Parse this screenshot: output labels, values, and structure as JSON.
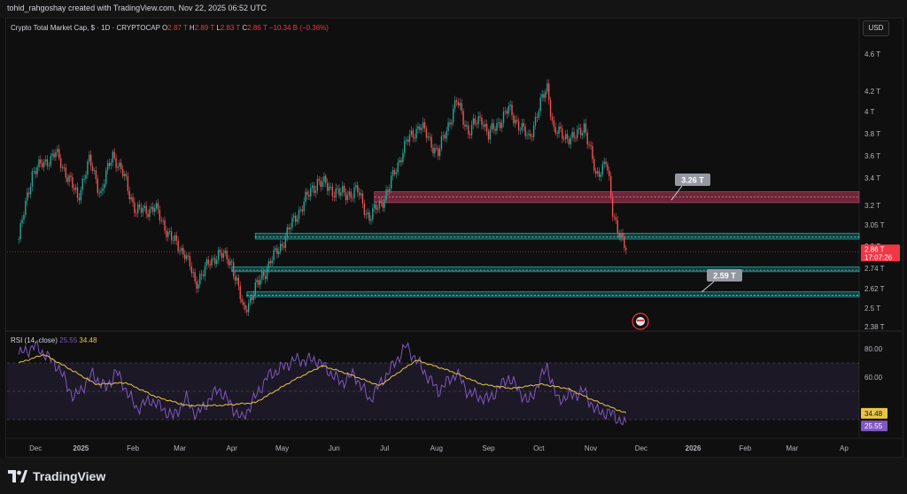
{
  "header": {
    "creator": "tohid_rahgoshay created with TradingView.com, Nov 22, 2025 06:52 UTC"
  },
  "legend": {
    "symbol": "Crypto Total Market Cap, $ · 1D · CRYPTOCAP",
    "o_label": "O",
    "o_value": "2.87 T",
    "h_label": "H",
    "h_value": "2.89 T",
    "l_label": "L",
    "l_value": "2.83 T",
    "c_label": "C",
    "c_value": "2.86 T",
    "change": "−10.34 B (−0.36%)"
  },
  "currency_button": "USD",
  "rsi_legend": {
    "label": "RSI (14, close)",
    "rsi_value": "25.55",
    "ma_value": "34.48"
  },
  "footer": {
    "brand": "TradingView"
  },
  "colors": {
    "up": "#26a69a",
    "down": "#ef5350",
    "rsi": "#7e57c2",
    "rsi_ma": "#e8c547",
    "resistance_zone": "#8e2f48",
    "support_zone": "#0e6b6b",
    "price_tag": "#f23645"
  },
  "chart_data": [
    {
      "type": "candlestick",
      "title": "Crypto Total Market Cap",
      "y_axis_ticks": [
        "4.6 T",
        "4.2 T",
        "4 T",
        "3.8 T",
        "3.6 T",
        "3.4 T",
        "3.2 T",
        "3.05 T",
        "2.9 T",
        "2.74 T",
        "2.62 T",
        "2.5 T",
        "2.38 T"
      ],
      "y_tick_values": [
        4.6,
        4.2,
        4.0,
        3.8,
        3.6,
        3.4,
        3.2,
        3.05,
        2.9,
        2.74,
        2.62,
        2.5,
        2.38
      ],
      "ylim": [
        2.38,
        4.6
      ],
      "y_scale": "log",
      "x_axis_ticks": [
        "Dec",
        "2025",
        "Feb",
        "Mar",
        "Apr",
        "May",
        "Jun",
        "Jul",
        "Aug",
        "Sep",
        "Oct",
        "Nov",
        "Dec",
        "2026",
        "Feb",
        "Mar",
        "Ap"
      ],
      "last_price": "2.86 T",
      "countdown": "17:07:26",
      "path_points": [
        [
          "2024-11-25",
          2.95
        ],
        [
          "2024-12-03",
          3.45
        ],
        [
          "2024-12-17",
          3.62
        ],
        [
          "2024-12-30",
          3.25
        ],
        [
          "2025-01-06",
          3.55
        ],
        [
          "2025-01-13",
          3.28
        ],
        [
          "2025-01-20",
          3.62
        ],
        [
          "2025-01-27",
          3.4
        ],
        [
          "2025-02-03",
          3.15
        ],
        [
          "2025-02-14",
          3.18
        ],
        [
          "2025-02-24",
          2.95
        ],
        [
          "2025-03-04",
          2.85
        ],
        [
          "2025-03-10",
          2.65
        ],
        [
          "2025-03-24",
          2.85
        ],
        [
          "2025-04-01",
          2.78
        ],
        [
          "2025-04-08",
          2.48
        ],
        [
          "2025-04-22",
          2.75
        ],
        [
          "2025-05-01",
          2.92
        ],
        [
          "2025-05-12",
          3.18
        ],
        [
          "2025-05-22",
          3.38
        ],
        [
          "2025-06-05",
          3.28
        ],
        [
          "2025-06-15",
          3.3
        ],
        [
          "2025-06-22",
          3.1
        ],
        [
          "2025-07-03",
          3.3
        ],
        [
          "2025-07-14",
          3.72
        ],
        [
          "2025-07-22",
          3.88
        ],
        [
          "2025-08-02",
          3.62
        ],
        [
          "2025-08-13",
          4.1
        ],
        [
          "2025-08-20",
          3.82
        ],
        [
          "2025-08-28",
          3.95
        ],
        [
          "2025-09-01",
          3.78
        ],
        [
          "2025-09-13",
          4.02
        ],
        [
          "2025-09-25",
          3.75
        ],
        [
          "2025-10-06",
          4.25
        ],
        [
          "2025-10-10",
          3.82
        ],
        [
          "2025-10-22",
          3.75
        ],
        [
          "2025-10-28",
          3.88
        ],
        [
          "2025-11-04",
          3.42
        ],
        [
          "2025-11-10",
          3.55
        ],
        [
          "2025-11-14",
          3.15
        ],
        [
          "2025-11-18",
          3.0
        ],
        [
          "2025-11-22",
          2.86
        ]
      ],
      "zones": [
        {
          "kind": "resistance",
          "top": 3.3,
          "bottom": 3.22,
          "start": "2025-06-25",
          "label": "3.26 T"
        },
        {
          "kind": "support",
          "top": 2.99,
          "bottom": 2.95,
          "start": "2025-04-15"
        },
        {
          "kind": "support",
          "top": 2.75,
          "bottom": 2.72,
          "start": "2025-04-01"
        },
        {
          "kind": "support",
          "top": 2.6,
          "bottom": 2.57,
          "start": "2025-04-10",
          "label": "2.59 T"
        }
      ]
    },
    {
      "type": "line",
      "title": "RSI (14, close)",
      "y_axis_ticks": [
        "80.00",
        "60.00"
      ],
      "ylim": [
        20,
        90
      ],
      "band": [
        30,
        70
      ],
      "series": [
        {
          "name": "RSI",
          "points": [
            [
              "2024-11-25",
              76
            ],
            [
              "2024-12-05",
              82
            ],
            [
              "2024-12-18",
              68
            ],
            [
              "2024-12-28",
              45
            ],
            [
              "2025-01-08",
              62
            ],
            [
              "2025-01-16",
              52
            ],
            [
              "2025-01-22",
              64
            ],
            [
              "2025-02-03",
              38
            ],
            [
              "2025-02-12",
              44
            ],
            [
              "2025-02-25",
              32
            ],
            [
              "2025-03-05",
              45
            ],
            [
              "2025-03-11",
              33
            ],
            [
              "2025-03-24",
              52
            ],
            [
              "2025-04-07",
              30
            ],
            [
              "2025-04-22",
              60
            ],
            [
              "2025-05-08",
              72
            ],
            [
              "2025-05-22",
              72
            ],
            [
              "2025-06-05",
              56
            ],
            [
              "2025-06-13",
              62
            ],
            [
              "2025-06-22",
              44
            ],
            [
              "2025-07-14",
              82
            ],
            [
              "2025-08-02",
              50
            ],
            [
              "2025-08-13",
              63
            ],
            [
              "2025-08-20",
              49
            ],
            [
              "2025-09-01",
              44
            ],
            [
              "2025-09-13",
              60
            ],
            [
              "2025-09-25",
              42
            ],
            [
              "2025-10-06",
              68
            ],
            [
              "2025-10-12",
              44
            ],
            [
              "2025-10-28",
              50
            ],
            [
              "2025-11-04",
              36
            ],
            [
              "2025-11-14",
              34
            ],
            [
              "2025-11-22",
              25.55
            ]
          ]
        },
        {
          "name": "RSI-based MA",
          "points": [
            [
              "2024-11-25",
              70
            ],
            [
              "2024-12-10",
              76
            ],
            [
              "2024-12-25",
              66
            ],
            [
              "2025-01-10",
              55
            ],
            [
              "2025-01-28",
              56
            ],
            [
              "2025-02-15",
              46
            ],
            [
              "2025-03-05",
              40
            ],
            [
              "2025-03-25",
              40
            ],
            [
              "2025-04-15",
              42
            ],
            [
              "2025-05-08",
              58
            ],
            [
              "2025-05-25",
              68
            ],
            [
              "2025-06-10",
              62
            ],
            [
              "2025-06-28",
              54
            ],
            [
              "2025-07-20",
              72
            ],
            [
              "2025-08-10",
              64
            ],
            [
              "2025-08-28",
              55
            ],
            [
              "2025-09-15",
              52
            ],
            [
              "2025-10-02",
              55
            ],
            [
              "2025-10-18",
              52
            ],
            [
              "2025-11-02",
              44
            ],
            [
              "2025-11-22",
              34.48
            ]
          ]
        }
      ]
    }
  ]
}
